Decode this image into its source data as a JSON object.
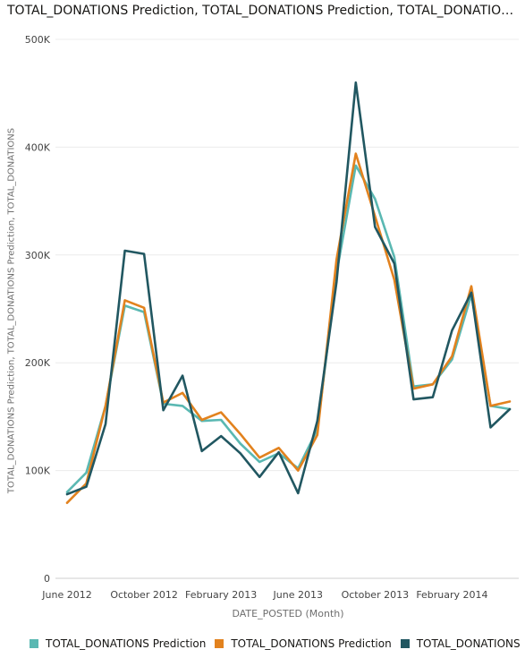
{
  "chart_data": {
    "type": "line",
    "title": "TOTAL_DONATIONS Prediction, TOTAL_DONATIONS Prediction, TOTAL_DONATIONS b…",
    "xlabel": "DATE_POSTED (Month)",
    "ylabel": "TOTAL_DONATIONS Prediction, TOTAL_DONATIONS Prediction, TOTAL_DONATIONS",
    "x": [
      "2012-06",
      "2012-07",
      "2012-08",
      "2012-09",
      "2012-10",
      "2012-11",
      "2012-12",
      "2013-01",
      "2013-02",
      "2013-03",
      "2013-04",
      "2013-05",
      "2013-06",
      "2013-07",
      "2013-08",
      "2013-09",
      "2013-10",
      "2013-11",
      "2013-12",
      "2014-01",
      "2014-02",
      "2014-03",
      "2014-04",
      "2014-05"
    ],
    "x_ticks": [
      "June 2012",
      "October 2012",
      "February 2013",
      "June 2013",
      "October 2013",
      "February 2014"
    ],
    "x_tick_positions": [
      "2012-06",
      "2012-10",
      "2013-02",
      "2013-06",
      "2013-10",
      "2014-02"
    ],
    "ylim": [
      0,
      500000
    ],
    "y_ticks": [
      0,
      100000,
      200000,
      300000,
      400000,
      500000
    ],
    "y_tick_labels": [
      "0",
      "100K",
      "200K",
      "300K",
      "400K",
      "500K"
    ],
    "grid": true,
    "legend_position": "bottom",
    "series": [
      {
        "name": "TOTAL_DONATIONS Prediction",
        "color": "#5ab8b2",
        "values": [
          80000,
          98000,
          160000,
          253000,
          247000,
          162000,
          160000,
          146000,
          147000,
          125000,
          108000,
          116000,
          102000,
          138000,
          283000,
          383000,
          352000,
          298000,
          178000,
          180000,
          203000,
          263000,
          160000,
          157000
        ]
      },
      {
        "name": "TOTAL_DONATIONS Prediction",
        "color": "#e2821e",
        "values": [
          70000,
          88000,
          160000,
          258000,
          251000,
          163000,
          172000,
          147000,
          154000,
          134000,
          112000,
          121000,
          100000,
          133000,
          296000,
          394000,
          336000,
          277000,
          176000,
          180000,
          206000,
          271000,
          160000,
          164000
        ]
      },
      {
        "name": "TOTAL_DONATIONS",
        "color": "#215761",
        "values": [
          78000,
          85000,
          143000,
          304000,
          301000,
          156000,
          188000,
          118000,
          132000,
          116000,
          94000,
          117000,
          79000,
          146000,
          275000,
          460000,
          326000,
          292000,
          166000,
          168000,
          230000,
          265000,
          140000,
          157000
        ]
      }
    ]
  }
}
